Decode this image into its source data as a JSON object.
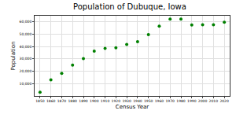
{
  "chart_data": {
    "type": "scatter",
    "title": "Population of Dubuque, Iowa",
    "x_label": "Census Year",
    "y_label": "Population",
    "x": [
      1850,
      1860,
      1870,
      1880,
      1890,
      1900,
      1910,
      1920,
      1930,
      1940,
      1950,
      1960,
      1970,
      1980,
      1990,
      2000,
      2010,
      2020
    ],
    "values": [
      3100,
      13000,
      18400,
      25000,
      30300,
      36300,
      38500,
      39100,
      41700,
      43900,
      49700,
      56600,
      62300,
      62300,
      57500,
      57700,
      57600,
      59700
    ],
    "color": "#008000",
    "marker": "circle",
    "xlim": [
      1845,
      2025
    ],
    "xticks": [
      1850,
      1860,
      1870,
      1880,
      1890,
      1900,
      1910,
      1920,
      1930,
      1940,
      1950,
      1960,
      1970,
      1980,
      1990,
      2000,
      2010,
      2020
    ],
    "ylim": [
      0,
      65000
    ],
    "yticks": [
      {
        "value": 10000,
        "label": "10,000"
      },
      {
        "value": 20000,
        "label": "20,000"
      },
      {
        "value": 30000,
        "label": "30,000"
      },
      {
        "value": 40000,
        "label": "40,000"
      },
      {
        "value": 50000,
        "label": "50,000"
      },
      {
        "value": 60000,
        "label": "60,000"
      }
    ],
    "grid": true
  }
}
